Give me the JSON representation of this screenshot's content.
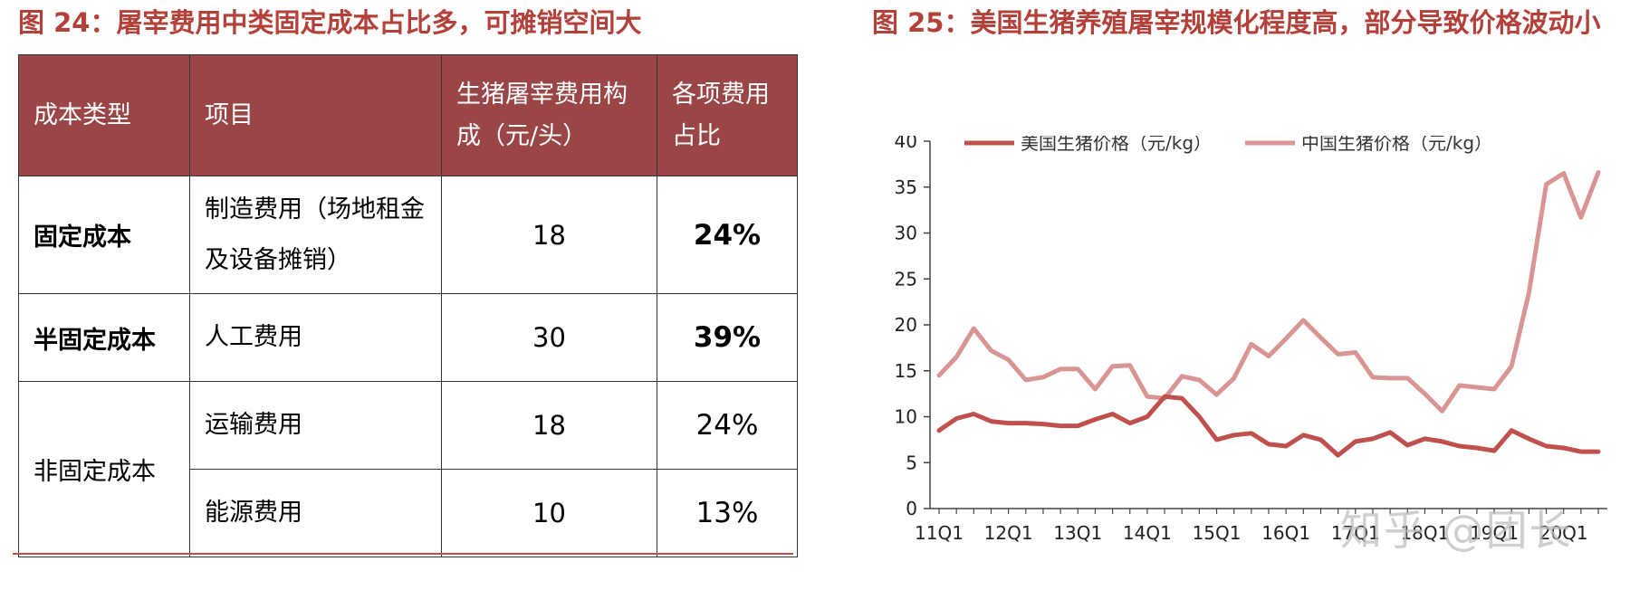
{
  "left_title": "图 24：屠宰费用中类固定成本占比多，可摊销空间大",
  "right_title": "图 25：美国生猪养殖屠宰规模化程度高，部分导致价格波动小",
  "table": {
    "headers": [
      "成本类型",
      "项目",
      "生猪屠宰费用构成（元/头）",
      "各项费用占比"
    ],
    "rows": [
      {
        "type": "固定成本",
        "item": "制造费用（场地租金及设备摊销）",
        "cost": "18",
        "share": "24%"
      },
      {
        "type": "半固定成本",
        "item": "人工费用",
        "cost": "30",
        "share": "39%"
      },
      {
        "type": "非固定成本",
        "item": "运输费用",
        "cost": "18",
        "share": "24%"
      },
      {
        "type": "",
        "item": "能源费用",
        "cost": "10",
        "share": "13%"
      }
    ]
  },
  "chart_data": {
    "type": "line",
    "title": "",
    "xlabel": "",
    "ylabel": "",
    "ylim": [
      0,
      40
    ],
    "yticks": [
      0,
      5,
      10,
      15,
      20,
      25,
      30,
      35,
      40
    ],
    "xtick_labels": [
      "11Q1",
      "12Q1",
      "13Q1",
      "14Q1",
      "15Q1",
      "16Q1",
      "17Q1",
      "18Q1",
      "19Q1",
      "20Q1"
    ],
    "x": [
      "11Q1",
      "11Q2",
      "11Q3",
      "11Q4",
      "12Q1",
      "12Q2",
      "12Q3",
      "12Q4",
      "13Q1",
      "13Q2",
      "13Q3",
      "13Q4",
      "14Q1",
      "14Q2",
      "14Q3",
      "14Q4",
      "15Q1",
      "15Q2",
      "15Q3",
      "15Q4",
      "16Q1",
      "16Q2",
      "16Q3",
      "16Q4",
      "17Q1",
      "17Q2",
      "17Q3",
      "17Q4",
      "18Q1",
      "18Q2",
      "18Q3",
      "18Q4",
      "19Q1",
      "19Q2",
      "19Q3",
      "19Q4",
      "20Q1",
      "20Q2",
      "20Q3"
    ],
    "legend_position": "top",
    "grid": false,
    "series": [
      {
        "name": "美国生猪价格（元/kg）",
        "color": "#c0504d",
        "values": [
          8.5,
          9.8,
          10.3,
          9.5,
          9.3,
          9.3,
          9.2,
          9.0,
          9.0,
          9.7,
          10.3,
          9.3,
          10.0,
          12.2,
          12.0,
          10.0,
          7.5,
          8.0,
          8.2,
          7.0,
          6.8,
          8.0,
          7.5,
          5.8,
          7.3,
          7.6,
          8.3,
          6.9,
          7.6,
          7.3,
          6.8,
          6.6,
          6.3,
          8.5,
          7.6,
          6.8,
          6.6,
          6.2,
          6.2
        ]
      },
      {
        "name": "中国生猪价格（元/kg）",
        "color": "#d99594",
        "values": [
          14.5,
          16.5,
          19.6,
          17.2,
          16.2,
          14.0,
          14.3,
          15.2,
          15.2,
          13.0,
          15.5,
          15.6,
          12.2,
          12.0,
          14.4,
          14.0,
          12.4,
          14.2,
          17.9,
          16.6,
          18.5,
          20.5,
          18.6,
          16.8,
          17.0,
          14.3,
          14.2,
          14.2,
          12.5,
          10.6,
          13.4,
          13.2,
          13.0,
          15.5,
          23.5,
          35.3,
          36.5,
          31.7,
          36.6
        ]
      }
    ]
  },
  "watermark": "知乎 @团长"
}
